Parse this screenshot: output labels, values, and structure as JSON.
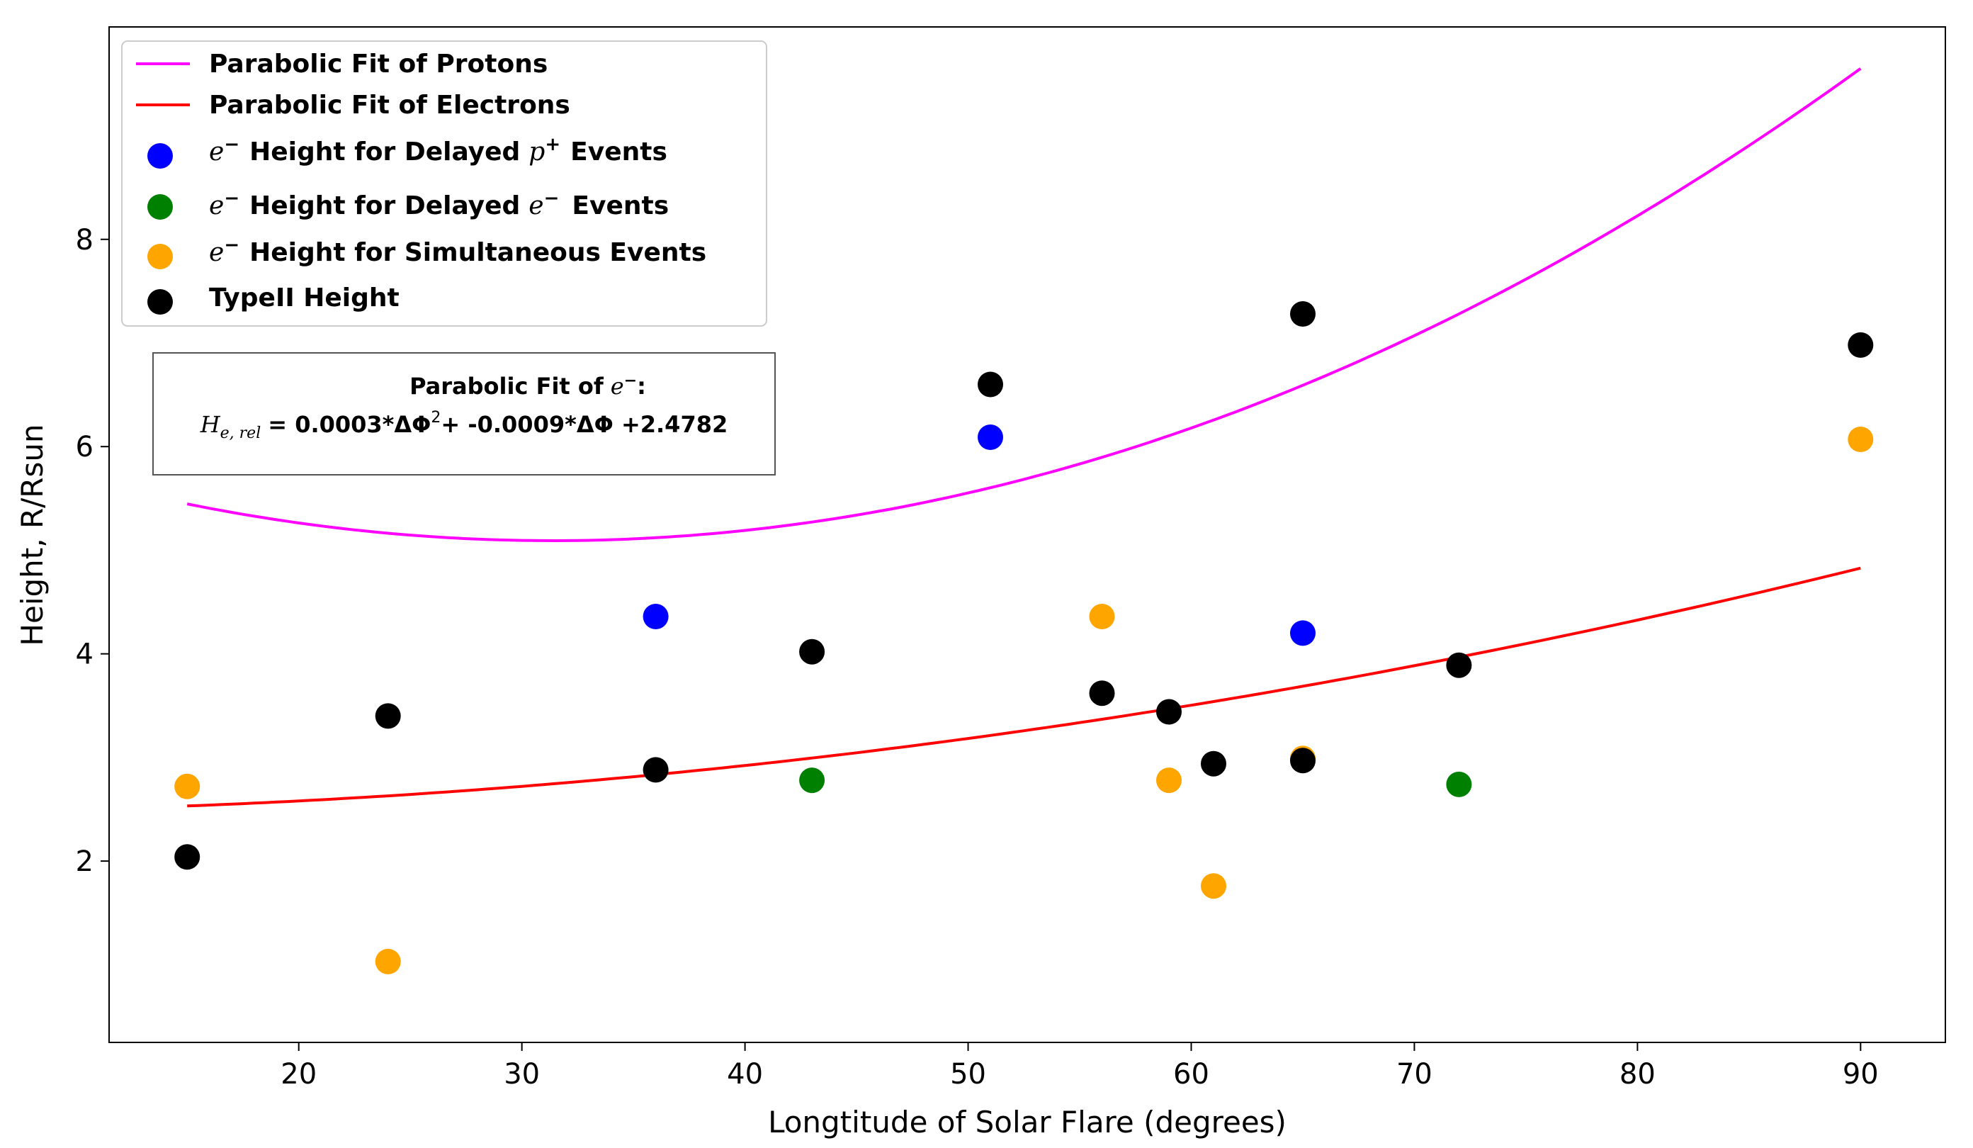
{
  "chart_data": {
    "type": "scatter",
    "xlabel": "Longtitude of Solar Flare (degrees)",
    "ylabel": "Height, R/Rsun",
    "xlim": [
      11.5,
      93.8
    ],
    "ylim": [
      0.25,
      10.05
    ],
    "xticks": [
      20,
      30,
      40,
      50,
      60,
      70,
      80,
      90
    ],
    "yticks": [
      2,
      4,
      6,
      8
    ],
    "grid": false,
    "legend_location": "upper-left",
    "series": [
      {
        "name": "Parabolic Fit of Protons",
        "kind": "line",
        "color": "#ff00ff",
        "x_range": [
          15,
          90
        ],
        "coefficients": {
          "a": 0.001325,
          "b": -0.0831,
          "c": 6.395
        }
      },
      {
        "name": "Parabolic Fit of Electrons",
        "kind": "line",
        "color": "#ff0000",
        "x_range": [
          15,
          90
        ],
        "coefficients": {
          "a": 0.0003,
          "b": -0.0009,
          "c": 2.4782
        }
      },
      {
        "name": "e⁻ Height for Delayed p⁺ Events",
        "kind": "scatter",
        "color": "#0000ff",
        "points": [
          [
            36,
            4.36
          ],
          [
            51,
            6.09
          ],
          [
            65,
            4.2
          ]
        ]
      },
      {
        "name": "e⁻ Height for Delayed e⁻ Events",
        "kind": "scatter",
        "color": "#008000",
        "points": [
          [
            43,
            2.78
          ],
          [
            72,
            2.74
          ]
        ]
      },
      {
        "name": "e⁻ Height for Simultaneous Events",
        "kind": "scatter",
        "color": "#ffa500",
        "points": [
          [
            15,
            2.72
          ],
          [
            24,
            1.03
          ],
          [
            56,
            4.36
          ],
          [
            59,
            2.78
          ],
          [
            61,
            1.76
          ],
          [
            65,
            2.99
          ],
          [
            90,
            6.07
          ]
        ]
      },
      {
        "name": "TypeII Height",
        "kind": "scatter",
        "color": "#000000",
        "points": [
          [
            15,
            2.04
          ],
          [
            24,
            3.4
          ],
          [
            36,
            2.88
          ],
          [
            43,
            4.02
          ],
          [
            51,
            6.6
          ],
          [
            56,
            3.62
          ],
          [
            59,
            3.44
          ],
          [
            61,
            2.94
          ],
          [
            65,
            2.97
          ],
          [
            65,
            7.28
          ],
          [
            72,
            3.89
          ],
          [
            90,
            6.98
          ]
        ]
      }
    ],
    "legend": {
      "protons_fit": "Parabolic Fit of Protons",
      "electrons_fit": "Parabolic Fit of Electrons",
      "delayed_p_prefix": "Height for Delayed",
      "delayed_p_suffix": "Events",
      "delayed_e_prefix": "Height for Delayed",
      "delayed_e_suffix": "Events",
      "simultaneous": "Height for Simultaneous Events",
      "typeii": "TypeII Height",
      "e_symbol": "e",
      "p_symbol": "p"
    },
    "annotation": {
      "title": "Parabolic Fit of",
      "title_symbol": "e",
      "h_symbol": "H",
      "h_subscript": "e, rel",
      "eq_part1": "= 0.0003*ΔΦ",
      "eq_part2": "+ -0.0009*ΔΦ +2.4782",
      "exponent": "2"
    }
  }
}
